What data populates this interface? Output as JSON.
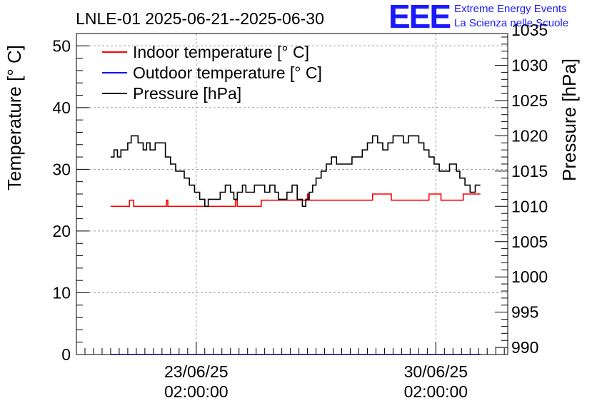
{
  "logo": {
    "mark": "EEE",
    "line1": "Extreme Energy Events",
    "line2": "La Scienza nelle Scuole"
  },
  "colors": {
    "indoor": "#ff0000",
    "outdoor": "#0000ff",
    "pressure": "#000000",
    "logo": "#1a1aff",
    "grid": "#9a9a9a"
  },
  "chart_data": {
    "type": "line",
    "title": "LNLE-01 2025-06-21--2025-06-30",
    "xlabel": "",
    "ylabel_left": "Temperature [° C]",
    "ylabel_right": "Pressure [hPa]",
    "ylim_left": [
      0,
      52
    ],
    "ylim_right": [
      989,
      1034.5
    ],
    "left_ticks": [
      0,
      10,
      20,
      30,
      40,
      50
    ],
    "right_ticks": [
      990,
      995,
      1000,
      1005,
      1010,
      1015,
      1020,
      1025,
      1030,
      1035
    ],
    "x_ticks": [
      {
        "day": 2.5,
        "line1": "23/06/25",
        "line2": "02:00:00"
      },
      {
        "day": 9.5,
        "line1": "30/06/25",
        "line2": "02:00:00"
      }
    ],
    "xlim_days": [
      -1.0,
      11.6
    ],
    "grid": true,
    "legend_position": "top-left",
    "series": [
      {
        "name": "Indoor temperature [° C]",
        "axis": "left",
        "x_days": [
          0.0,
          0.5,
          0.55,
          0.62,
          0.67,
          1.6,
          1.63,
          1.67,
          3.0,
          3.6,
          3.65,
          3.7,
          3.9,
          4.4,
          5.0,
          5.3,
          5.5,
          5.7,
          5.75,
          5.78,
          6.4,
          6.5,
          7.6,
          7.65,
          7.9,
          8.2,
          9.0,
          9.3,
          9.6,
          9.65,
          10.0,
          10.3,
          10.4,
          10.8
        ],
        "values": [
          24,
          24,
          25,
          25,
          24,
          24,
          25,
          24,
          24,
          24,
          25,
          24,
          24,
          25,
          25,
          25,
          25,
          25,
          26,
          25,
          25,
          25,
          25,
          26,
          26,
          25,
          25,
          26,
          26,
          25,
          25,
          26,
          26,
          26
        ]
      },
      {
        "name": "Outdoor temperature [° C]",
        "axis": "left",
        "x_days": [
          0.0,
          10.8
        ],
        "values": [
          0,
          0
        ]
      },
      {
        "name": "Pressure [hPa]",
        "axis": "right",
        "x_days": [
          0.0,
          0.1,
          0.2,
          0.3,
          0.5,
          0.6,
          0.8,
          0.95,
          1.05,
          1.15,
          1.3,
          1.45,
          1.6,
          1.75,
          1.9,
          2.05,
          2.15,
          2.3,
          2.45,
          2.6,
          2.75,
          2.85,
          2.95,
          3.05,
          3.2,
          3.35,
          3.5,
          3.6,
          3.7,
          3.85,
          3.95,
          4.05,
          4.2,
          4.35,
          4.5,
          4.65,
          4.8,
          4.9,
          5.0,
          5.15,
          5.3,
          5.45,
          5.6,
          5.7,
          5.8,
          5.9,
          6.0,
          6.15,
          6.3,
          6.45,
          6.6,
          6.75,
          6.9,
          7.05,
          7.2,
          7.35,
          7.5,
          7.65,
          7.8,
          7.95,
          8.1,
          8.25,
          8.4,
          8.55,
          8.7,
          8.85,
          9.0,
          9.15,
          9.3,
          9.45,
          9.6,
          9.75,
          9.9,
          10.0,
          10.1,
          10.2,
          10.35,
          10.5,
          10.65,
          10.8
        ],
        "values": [
          1017,
          1018,
          1017,
          1018,
          1019,
          1020,
          1019,
          1018,
          1019,
          1018,
          1019,
          1019,
          1017,
          1016,
          1015,
          1015,
          1014,
          1013,
          1012,
          1011,
          1010,
          1011,
          1011,
          1011,
          1012,
          1013,
          1012,
          1011,
          1012,
          1013,
          1012,
          1012,
          1013,
          1013,
          1012,
          1013,
          1012,
          1011,
          1011,
          1012,
          1013,
          1011,
          1010,
          1011,
          1012,
          1013,
          1014,
          1015,
          1016,
          1017,
          1016,
          1016,
          1016,
          1017,
          1017,
          1018,
          1019,
          1020,
          1019,
          1018,
          1019,
          1020,
          1020,
          1019,
          1020,
          1020,
          1019,
          1018,
          1017,
          1016,
          1015,
          1015,
          1016,
          1016,
          1015,
          1014,
          1013,
          1012,
          1013,
          1013
        ]
      }
    ]
  }
}
